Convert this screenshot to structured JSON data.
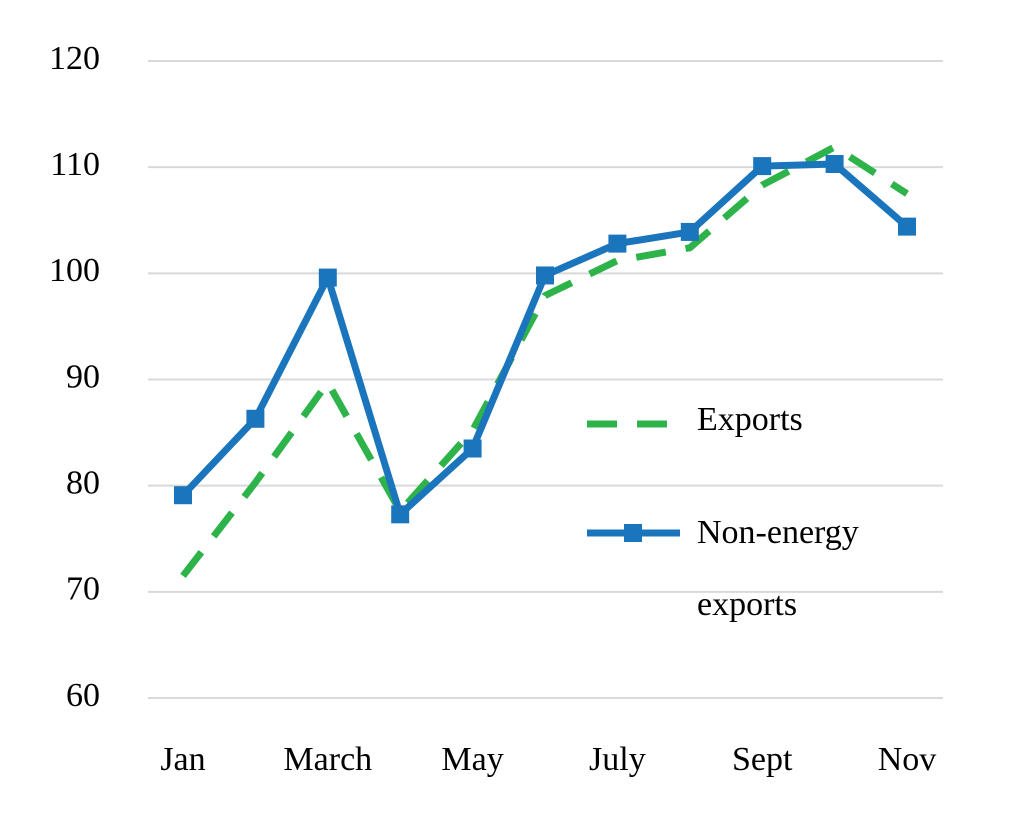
{
  "chart_data": {
    "type": "line",
    "categories": [
      "Jan",
      null,
      "March",
      null,
      "May",
      null,
      "July",
      null,
      "Sept",
      null,
      "Nov"
    ],
    "series": [
      {
        "name": "Exports",
        "color": "#2db34a",
        "dash": true,
        "marker": false,
        "values": [
          71.5,
          80.3,
          89.7,
          77.6,
          85.2,
          97.9,
          101.2,
          102.4,
          108.3,
          111.9,
          107.5
        ]
      },
      {
        "name": "Non-energy exports",
        "color": "#1b75bc",
        "dash": false,
        "marker": true,
        "values": [
          79.1,
          86.3,
          99.6,
          77.3,
          83.5,
          99.8,
          102.8,
          103.9,
          110.1,
          110.3,
          104.4
        ]
      }
    ],
    "ylim": [
      60,
      120
    ],
    "yticks": [
      60,
      70,
      80,
      90,
      100,
      110,
      120
    ],
    "grid": true
  }
}
